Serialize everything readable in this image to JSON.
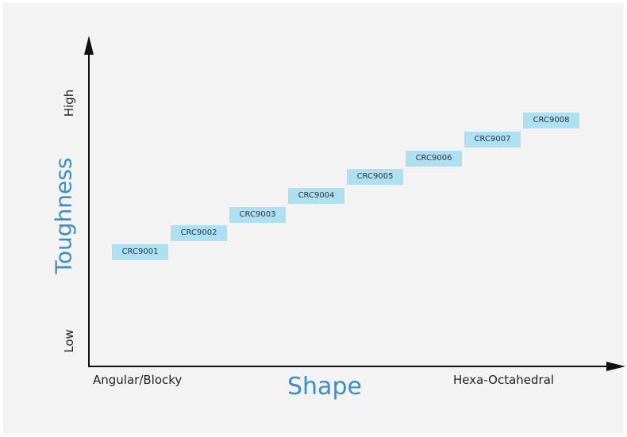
{
  "chart_data": {
    "type": "diagram",
    "y_axis": {
      "title": "Toughness",
      "low_label": "Low",
      "high_label": "High"
    },
    "x_axis": {
      "title": "Shape",
      "left_label": "Angular/Blocky",
      "right_label": "Hexa-Octahedral"
    },
    "grades": [
      {
        "label": "CRC9001",
        "shape": 1,
        "toughness": 1
      },
      {
        "label": "CRC9002",
        "shape": 2,
        "toughness": 2
      },
      {
        "label": "CRC9003",
        "shape": 3,
        "toughness": 3
      },
      {
        "label": "CRC9004",
        "shape": 4,
        "toughness": 4
      },
      {
        "label": "CRC9005",
        "shape": 5,
        "toughness": 5
      },
      {
        "label": "CRC9006",
        "shape": 6,
        "toughness": 6
      },
      {
        "label": "CRC9007",
        "shape": 7,
        "toughness": 7
      },
      {
        "label": "CRC9008",
        "shape": 8,
        "toughness": 8
      }
    ],
    "colors": {
      "box": "#aee0f4",
      "title": "#3a8ec9",
      "axis": "#111111"
    }
  }
}
